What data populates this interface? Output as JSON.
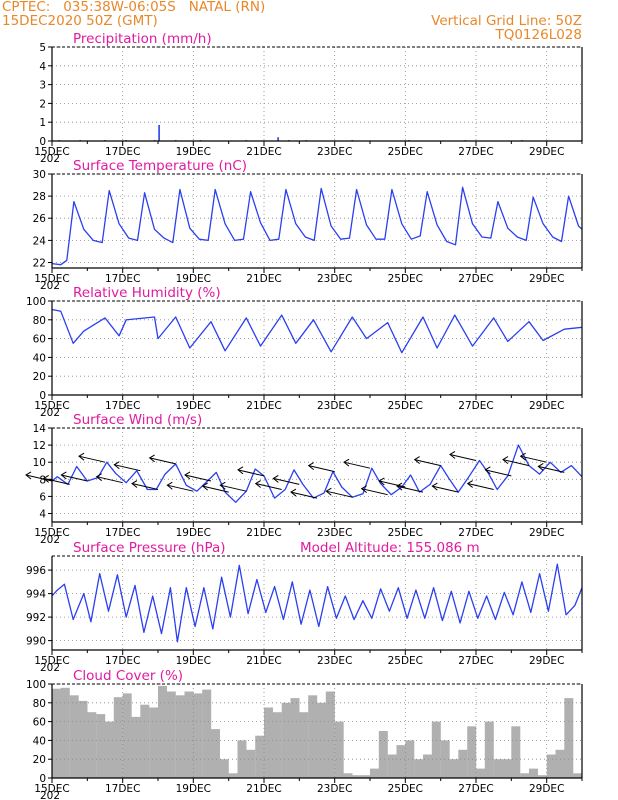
{
  "header": {
    "line1": "CPTEC:   035:38W-06:05S   NATAL (RN)",
    "line2": "15DEC2020 50Z (GMT)",
    "right1": "Vertical Grid Line: 50Z",
    "right2": "TQ0126L028"
  },
  "colors": {
    "header": "#e8882a",
    "title": "#e01ba0",
    "line": "#2b3ff0",
    "bar": "#b0b0b0",
    "grid": "#888888"
  },
  "x_axis": {
    "labels": [
      "15DEC",
      "17DEC",
      "19DEC",
      "21DEC",
      "23DEC",
      "25DEC",
      "27DEC",
      "29DEC"
    ],
    "fragment": "202",
    "day_range": [
      0,
      15
    ]
  },
  "chart_data": [
    {
      "id": "precip",
      "type": "bar",
      "title": "Precipitation (mm/h)",
      "ylim": [
        0,
        5
      ],
      "yticks": [
        "0",
        "1",
        "2",
        "3",
        "4",
        "5"
      ],
      "yticks_values": [
        0,
        1,
        2,
        3,
        4,
        5
      ],
      "x_days": [
        0.2,
        0.8,
        1.5,
        2.1,
        2.9,
        3.03,
        3.5,
        4.2,
        5.5,
        6.4,
        6.7,
        7.2,
        8.5,
        10.1,
        11.7,
        13.3
      ],
      "values": [
        0.05,
        0.05,
        0.05,
        0.05,
        0.05,
        0.85,
        0.05,
        0.05,
        0.05,
        0.2,
        0.05,
        0.05,
        0.05,
        0.05,
        0.05,
        0.05
      ]
    },
    {
      "id": "temp",
      "type": "line",
      "title": "Surface Temperature (nC)",
      "ylim": [
        21.5,
        30
      ],
      "yticks": [
        "22",
        "24",
        "26",
        "28",
        "30"
      ],
      "yticks_values": [
        22,
        24,
        26,
        28,
        30
      ],
      "x_days": [
        0,
        0.25,
        0.42,
        0.62,
        0.9,
        1.17,
        1.42,
        1.62,
        1.9,
        2.17,
        2.42,
        2.62,
        2.9,
        3.17,
        3.42,
        3.62,
        3.9,
        4.17,
        4.42,
        4.62,
        4.9,
        5.17,
        5.42,
        5.62,
        5.9,
        6.17,
        6.42,
        6.62,
        6.9,
        7.17,
        7.42,
        7.62,
        7.9,
        8.17,
        8.42,
        8.62,
        8.9,
        9.17,
        9.42,
        9.62,
        9.9,
        10.17,
        10.42,
        10.62,
        10.9,
        11.17,
        11.42,
        11.62,
        11.9,
        12.17,
        12.42,
        12.62,
        12.9,
        13.17,
        13.42,
        13.62,
        13.9,
        14.17,
        14.42,
        14.62,
        14.9,
        15.0
      ],
      "values": [
        21.9,
        21.8,
        22.2,
        27.5,
        25.0,
        24.0,
        23.8,
        28.5,
        25.5,
        24.2,
        24.0,
        28.3,
        25.0,
        24.2,
        23.8,
        28.6,
        25.1,
        24.1,
        24.0,
        28.6,
        25.5,
        24.0,
        24.1,
        28.4,
        25.6,
        24.0,
        24.1,
        28.6,
        25.5,
        24.3,
        24.0,
        28.7,
        25.3,
        24.1,
        24.2,
        28.6,
        25.4,
        24.1,
        24.1,
        28.6,
        25.5,
        24.1,
        24.4,
        28.4,
        25.4,
        23.9,
        23.6,
        28.8,
        25.5,
        24.3,
        24.2,
        27.5,
        25.1,
        24.3,
        24.0,
        27.9,
        25.5,
        24.3,
        23.9,
        28.0,
        25.3,
        25.0
      ]
    },
    {
      "id": "rh",
      "type": "line",
      "title": "Relative Humidity (%)",
      "ylim": [
        0,
        100
      ],
      "yticks": [
        "0",
        "20",
        "40",
        "60",
        "80",
        "100"
      ],
      "yticks_values": [
        0,
        20,
        40,
        60,
        80,
        100
      ],
      "x_days": [
        0,
        0.25,
        0.6,
        0.9,
        1.5,
        1.9,
        2.1,
        2.9,
        3.0,
        3.5,
        3.9,
        4.5,
        4.9,
        5.5,
        5.9,
        6.5,
        6.9,
        7.4,
        7.9,
        8.5,
        8.9,
        9.5,
        9.9,
        10.5,
        10.9,
        11.4,
        11.9,
        12.5,
        12.9,
        13.5,
        13.9,
        14.5,
        15.0
      ],
      "values": [
        91,
        89,
        55,
        68,
        82,
        63,
        80,
        83,
        60,
        83,
        50,
        78,
        47,
        82,
        52,
        85,
        55,
        80,
        46,
        83,
        60,
        77,
        45,
        83,
        50,
        85,
        52,
        82,
        57,
        78,
        58,
        70,
        72
      ]
    },
    {
      "id": "wind",
      "type": "line",
      "title": "Surface Wind (m/s)",
      "ylim": [
        3,
        14
      ],
      "yticks": [
        "4",
        "6",
        "8",
        "10",
        "12",
        "14"
      ],
      "yticks_values": [
        4,
        6,
        8,
        10,
        12,
        14
      ],
      "x_days": [
        0,
        0.15,
        0.45,
        0.7,
        1.0,
        1.3,
        1.55,
        1.8,
        2.1,
        2.4,
        2.7,
        2.95,
        3.2,
        3.5,
        3.8,
        4.1,
        4.4,
        4.65,
        4.9,
        5.2,
        5.5,
        5.75,
        6.0,
        6.3,
        6.6,
        6.85,
        7.1,
        7.4,
        7.7,
        7.95,
        8.2,
        8.5,
        8.8,
        9.05,
        9.3,
        9.6,
        9.9,
        10.15,
        10.4,
        10.7,
        11.0,
        11.25,
        11.5,
        11.8,
        12.1,
        12.35,
        12.6,
        12.9,
        13.2,
        13.5,
        13.8,
        14.1,
        14.4,
        14.7,
        15.0
      ],
      "values": [
        7.8,
        8.3,
        7.4,
        9.5,
        7.8,
        8.2,
        10.0,
        8.7,
        7.6,
        9.0,
        6.8,
        6.8,
        8.6,
        9.8,
        7.3,
        6.6,
        7.8,
        8.8,
        6.5,
        5.3,
        6.6,
        9.2,
        8.4,
        5.8,
        6.8,
        9.1,
        7.4,
        5.8,
        6.4,
        8.9,
        7.1,
        5.9,
        6.3,
        9.3,
        7.5,
        6.2,
        7.1,
        8.5,
        6.5,
        7.4,
        9.6,
        8.0,
        6.5,
        8.3,
        10.2,
        8.7,
        6.8,
        8.4,
        12.0,
        9.6,
        8.6,
        10.0,
        8.8,
        9.6,
        8.3
      ]
    },
    {
      "id": "press",
      "type": "line",
      "title": "Surface Pressure (hPa)",
      "annotation": "Model Altitude: 155.086 m",
      "ylim": [
        989.2,
        997.2
      ],
      "yticks": [
        "990",
        "992",
        "994",
        "996"
      ],
      "yticks_values": [
        990,
        992,
        994,
        996
      ],
      "x_days": [
        0,
        0.15,
        0.35,
        0.6,
        0.9,
        1.1,
        1.35,
        1.6,
        1.85,
        2.1,
        2.35,
        2.6,
        2.85,
        3.1,
        3.35,
        3.55,
        3.8,
        4.05,
        4.3,
        4.55,
        4.8,
        5.05,
        5.3,
        5.55,
        5.8,
        6.05,
        6.3,
        6.55,
        6.8,
        7.05,
        7.3,
        7.55,
        7.8,
        8.05,
        8.3,
        8.55,
        8.8,
        9.05,
        9.3,
        9.55,
        9.8,
        10.05,
        10.3,
        10.55,
        10.8,
        11.05,
        11.3,
        11.55,
        11.8,
        12.05,
        12.3,
        12.55,
        12.8,
        13.05,
        13.3,
        13.55,
        13.8,
        14.05,
        14.3,
        14.55,
        14.8,
        15.0
      ],
      "values": [
        993.8,
        994.3,
        994.8,
        991.8,
        994.0,
        991.6,
        995.7,
        992.5,
        995.6,
        992.0,
        994.7,
        990.7,
        993.8,
        990.6,
        994.5,
        989.9,
        994.5,
        991.2,
        994.5,
        991.0,
        995.4,
        992.0,
        996.4,
        992.3,
        995.2,
        992.4,
        994.6,
        991.8,
        995.0,
        991.4,
        994.3,
        991.2,
        994.6,
        991.9,
        993.8,
        991.8,
        993.4,
        991.9,
        994.4,
        992.5,
        994.5,
        991.9,
        994.3,
        991.9,
        994.5,
        991.7,
        994.2,
        991.5,
        994.2,
        991.9,
        993.8,
        991.8,
        994.1,
        992.2,
        995.0,
        992.4,
        995.7,
        992.5,
        996.5,
        992.2,
        993.0,
        994.5
      ]
    },
    {
      "id": "cloud",
      "type": "bar",
      "title": "Cloud Cover (%)",
      "ylim": [
        0,
        100
      ],
      "yticks": [
        "0",
        "20",
        "40",
        "60",
        "80",
        "100"
      ],
      "yticks_values": [
        0,
        20,
        40,
        60,
        80,
        100
      ],
      "x_days": [
        0,
        0.25,
        0.5,
        0.75,
        1.0,
        1.25,
        1.5,
        1.75,
        2.0,
        2.25,
        2.5,
        2.75,
        3.0,
        3.25,
        3.5,
        3.75,
        4.0,
        4.25,
        4.5,
        4.75,
        5.0,
        5.25,
        5.5,
        5.75,
        6.0,
        6.25,
        6.5,
        6.75,
        7.0,
        7.25,
        7.5,
        7.75,
        8.0,
        8.25,
        8.5,
        8.75,
        9.0,
        9.25,
        9.5,
        9.75,
        10.0,
        10.25,
        10.5,
        10.75,
        11.0,
        11.25,
        11.5,
        11.75,
        12.0,
        12.25,
        12.5,
        12.75,
        13.0,
        13.25,
        13.5,
        13.75,
        14.0,
        14.25,
        14.5,
        14.75
      ],
      "values": [
        95,
        96,
        88,
        82,
        70,
        68,
        60,
        86,
        90,
        65,
        78,
        75,
        98,
        92,
        88,
        92,
        90,
        94,
        52,
        20,
        5,
        40,
        30,
        45,
        75,
        70,
        80,
        85,
        70,
        88,
        80,
        92,
        60,
        5,
        3,
        3,
        10,
        50,
        25,
        35,
        40,
        20,
        25,
        60,
        40,
        20,
        30,
        55,
        10,
        60,
        20,
        20,
        55,
        5,
        10,
        3,
        25,
        30,
        85,
        5
      ]
    }
  ]
}
